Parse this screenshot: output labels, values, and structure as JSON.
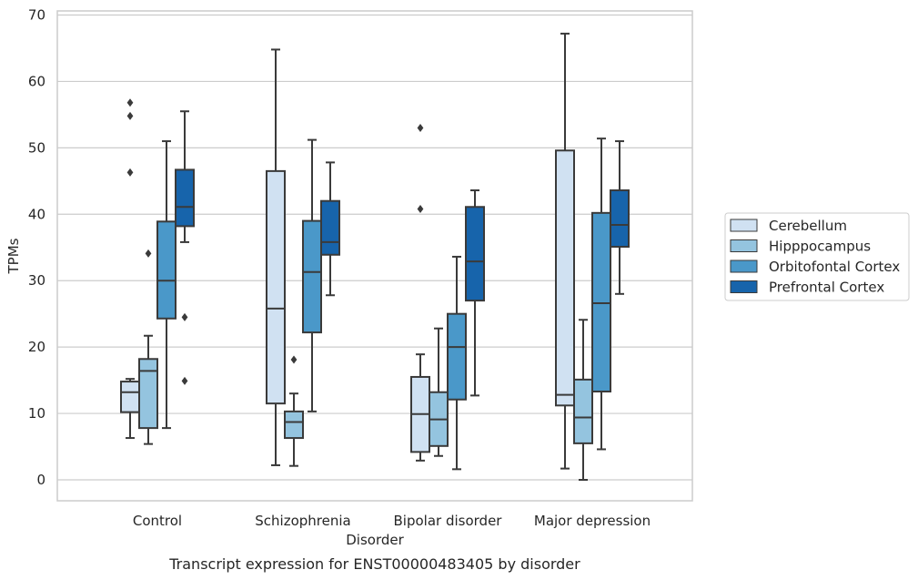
{
  "chart_data": {
    "type": "box",
    "caption": "Transcript expression for ENST00000483405 by disorder",
    "xlabel": "Disorder",
    "ylabel": "TPMs",
    "ylim": [
      -3,
      70.5
    ],
    "yticks": [
      0,
      10,
      20,
      30,
      40,
      50,
      60,
      70
    ],
    "grid": "horizontal",
    "legend_position": "right",
    "categories": [
      "Control",
      "Schizophrenia",
      "Bipolar disorder",
      "Major depression"
    ],
    "series": [
      {
        "name": "Cerebellum",
        "color": "#d0e1f2",
        "boxes": [
          {
            "whisker_low": 6.3,
            "q1": 10.2,
            "median": 13.2,
            "q3": 14.8,
            "whisker_high": 15.2,
            "outliers": [
              46.3,
              54.8,
              56.8
            ]
          },
          {
            "whisker_low": 2.2,
            "q1": 11.5,
            "median": 25.8,
            "q3": 46.5,
            "whisker_high": 64.8,
            "outliers": []
          },
          {
            "whisker_low": 2.9,
            "q1": 4.2,
            "median": 9.9,
            "q3": 15.5,
            "whisker_high": 18.9,
            "outliers": [
              40.8,
              53.0
            ]
          },
          {
            "whisker_low": 1.7,
            "q1": 11.2,
            "median": 12.8,
            "q3": 49.6,
            "whisker_high": 67.2,
            "outliers": []
          }
        ]
      },
      {
        "name": "Hipppocampus",
        "color": "#94c4df",
        "boxes": [
          {
            "whisker_low": 5.4,
            "q1": 7.8,
            "median": 16.4,
            "q3": 18.2,
            "whisker_high": 21.7,
            "outliers": [
              34.1
            ]
          },
          {
            "whisker_low": 2.1,
            "q1": 6.3,
            "median": 8.7,
            "q3": 10.3,
            "whisker_high": 13.0,
            "outliers": [
              18.1
            ]
          },
          {
            "whisker_low": 3.6,
            "q1": 5.1,
            "median": 9.1,
            "q3": 13.2,
            "whisker_high": 22.8,
            "outliers": []
          },
          {
            "whisker_low": 0.0,
            "q1": 5.5,
            "median": 9.4,
            "q3": 15.1,
            "whisker_high": 24.1,
            "outliers": []
          }
        ]
      },
      {
        "name": "Orbitofontal Cortex",
        "color": "#4a98c9",
        "boxes": [
          {
            "whisker_low": 7.8,
            "q1": 24.3,
            "median": 30.0,
            "q3": 38.9,
            "whisker_high": 51.0,
            "outliers": []
          },
          {
            "whisker_low": 10.3,
            "q1": 22.2,
            "median": 31.3,
            "q3": 39.0,
            "whisker_high": 51.2,
            "outliers": []
          },
          {
            "whisker_low": 1.6,
            "q1": 12.1,
            "median": 20.0,
            "q3": 25.0,
            "whisker_high": 33.6,
            "outliers": []
          },
          {
            "whisker_low": 4.6,
            "q1": 13.3,
            "median": 26.6,
            "q3": 40.2,
            "whisker_high": 51.4,
            "outliers": []
          }
        ]
      },
      {
        "name": "Prefrontal Cortex",
        "color": "#1764ab",
        "boxes": [
          {
            "whisker_low": 35.8,
            "q1": 38.2,
            "median": 41.1,
            "q3": 46.7,
            "whisker_high": 55.5,
            "outliers": [
              14.9,
              24.5
            ]
          },
          {
            "whisker_low": 27.8,
            "q1": 33.9,
            "median": 35.8,
            "q3": 42.0,
            "whisker_high": 47.8,
            "outliers": []
          },
          {
            "whisker_low": 12.7,
            "q1": 27.0,
            "median": 32.9,
            "q3": 41.1,
            "whisker_high": 43.6,
            "outliers": []
          },
          {
            "whisker_low": 28.0,
            "q1": 35.1,
            "median": 38.4,
            "q3": 43.6,
            "whisker_high": 51.0,
            "outliers": []
          }
        ]
      }
    ]
  }
}
